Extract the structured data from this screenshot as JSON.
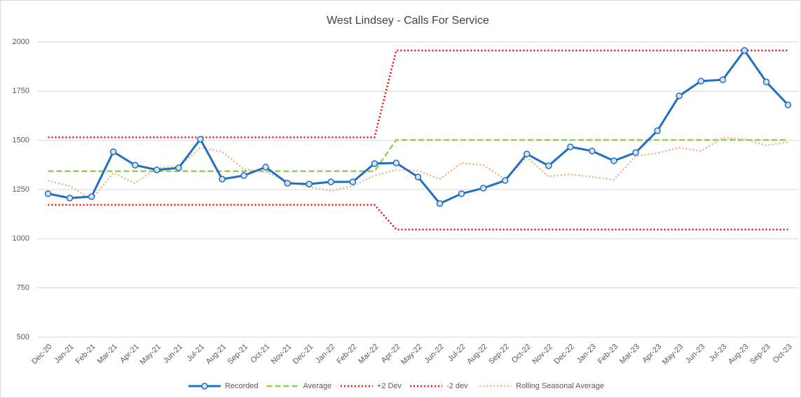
{
  "chart_data": {
    "type": "line",
    "title": "West Lindsey - Calls For Service",
    "categories": [
      "Dec-20",
      "Jan-21",
      "Feb-21",
      "Mar-21",
      "Apr-21",
      "May-21",
      "Jun-21",
      "Jul-21",
      "Aug-21",
      "Sep-21",
      "Oct-21",
      "Nov-21",
      "Dec-21",
      "Jan-22",
      "Feb-22",
      "Mar-22",
      "Apr-22",
      "May-22",
      "Jun-22",
      "Jul-22",
      "Aug-22",
      "Sep-22",
      "Oct-22",
      "Nov-22",
      "Dec-22",
      "Jan-23",
      "Feb-23",
      "Mar-23",
      "Apr-23",
      "May-23",
      "Jun-23",
      "Jul-23",
      "Aug-23",
      "Sep-23",
      "Oct-23"
    ],
    "series": [
      {
        "name": "Recorded",
        "color": "#1f70c1",
        "line_style": "solid",
        "markers": true,
        "values": [
          1229,
          1207,
          1214,
          1442,
          1374,
          1350,
          1360,
          1506,
          1303,
          1321,
          1364,
          1282,
          1278,
          1289,
          1289,
          1382,
          1385,
          1314,
          1179,
          1229,
          1257,
          1296,
          1431,
          1371,
          1467,
          1446,
          1396,
          1438,
          1549,
          1726,
          1801,
          1808,
          1957,
          1797,
          1680
        ]
      },
      {
        "name": "Average",
        "color": "#92d050",
        "line_style": "dashed",
        "markers": false,
        "values": [
          1343,
          1343,
          1343,
          1343,
          1343,
          1343,
          1343,
          1343,
          1343,
          1343,
          1343,
          1343,
          1343,
          1343,
          1343,
          1343,
          1502,
          1502,
          1502,
          1502,
          1502,
          1502,
          1502,
          1502,
          1502,
          1502,
          1502,
          1502,
          1502,
          1502,
          1502,
          1502,
          1502,
          1502,
          1502
        ]
      },
      {
        "name": "+2 Dev",
        "color": "#ff0000",
        "line_style": "dotted",
        "markers": false,
        "values": [
          1515,
          1515,
          1515,
          1515,
          1515,
          1515,
          1515,
          1515,
          1515,
          1515,
          1515,
          1515,
          1515,
          1515,
          1515,
          1515,
          1957,
          1957,
          1957,
          1957,
          1957,
          1957,
          1957,
          1957,
          1957,
          1957,
          1957,
          1957,
          1957,
          1957,
          1957,
          1957,
          1957,
          1957,
          1957
        ]
      },
      {
        "name": "-2 dev",
        "color": "#ff0000",
        "line_style": "dotted",
        "markers": false,
        "values": [
          1172,
          1172,
          1172,
          1172,
          1172,
          1172,
          1172,
          1172,
          1172,
          1172,
          1172,
          1172,
          1172,
          1172,
          1172,
          1172,
          1047,
          1047,
          1047,
          1047,
          1047,
          1047,
          1047,
          1047,
          1047,
          1047,
          1047,
          1047,
          1047,
          1047,
          1047,
          1047,
          1047,
          1047,
          1047
        ]
      },
      {
        "name": "Rolling Seasonal Average",
        "color": "#f4b183",
        "line_style": "dotted",
        "markers": false,
        "values": [
          1296,
          1268,
          1200,
          1335,
          1282,
          1360,
          1367,
          1463,
          1442,
          1353,
          1339,
          1293,
          1264,
          1243,
          1268,
          1321,
          1350,
          1346,
          1303,
          1385,
          1374,
          1303,
          1414,
          1317,
          1328,
          1314,
          1300,
          1420,
          1435,
          1463,
          1446,
          1513,
          1506,
          1474,
          1492
        ]
      }
    ],
    "ylim": [
      500,
      2000
    ],
    "yticks": [
      500,
      750,
      1000,
      1250,
      1500,
      1750,
      2000
    ],
    "grid": true,
    "legend": "bottom"
  }
}
